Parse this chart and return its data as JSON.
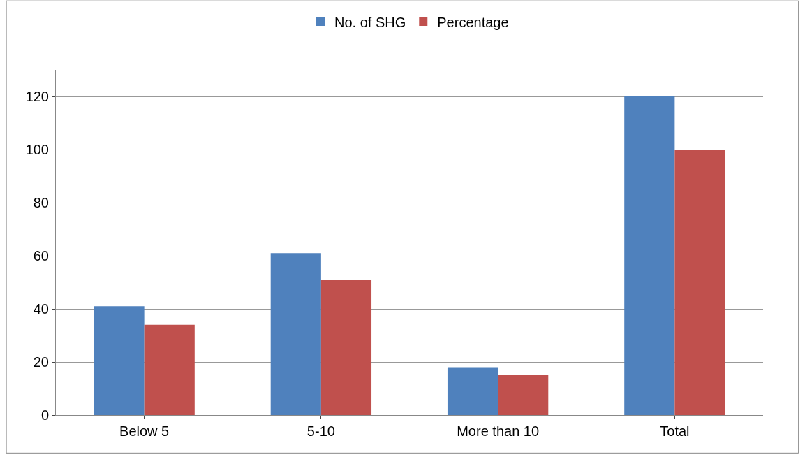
{
  "chart_data": {
    "type": "bar",
    "categories": [
      "Below 5",
      "5-10",
      "More than 10",
      "Total"
    ],
    "series": [
      {
        "name": "No. of SHG",
        "color": "#4f81bd",
        "values": [
          41,
          61,
          18,
          120
        ]
      },
      {
        "name": "Percentage",
        "color": "#c0504d",
        "values": [
          34,
          51,
          15,
          100
        ]
      }
    ],
    "ylim": [
      0,
      130
    ],
    "yticks": [
      0,
      20,
      40,
      60,
      80,
      100,
      120
    ],
    "grid": "y",
    "legend": "top"
  }
}
